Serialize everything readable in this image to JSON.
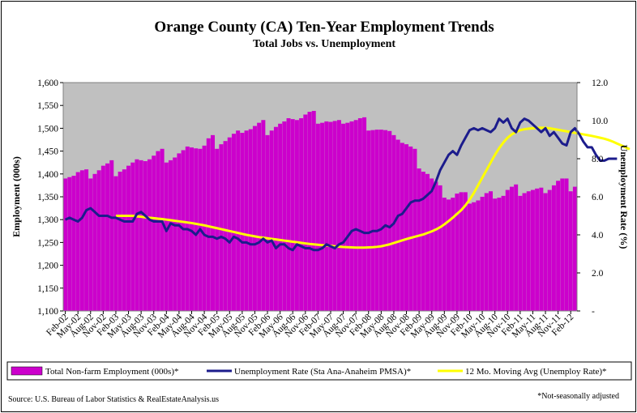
{
  "chart_data": {
    "type": "bar+line",
    "title": "Orange County (CA) Ten-Year Employment Trends",
    "subtitle": "Total Jobs vs. Unemployment",
    "ylabel_left": "Employment (000s)",
    "ylabel_right": "Unemployment Rate (%)",
    "ylim_left": [
      1100,
      1600
    ],
    "yticks_left": [
      "1,100",
      "1,150",
      "1,200",
      "1,250",
      "1,300",
      "1,350",
      "1,400",
      "1,450",
      "1,500",
      "1,550",
      "1,600"
    ],
    "ylim_right": [
      0,
      12
    ],
    "yticks_right": [
      "-",
      "2.0",
      "4.0",
      "6.0",
      "8.0",
      "10.0",
      "12.0"
    ],
    "x_tick_labels": [
      "Feb-02",
      "May-02",
      "Aug-02",
      "Nov-02",
      "Feb-03",
      "May-03",
      "Aug-03",
      "Nov-03",
      "Feb-04",
      "May-04",
      "Aug-04",
      "Nov-04",
      "Feb-05",
      "May-05",
      "Aug-05",
      "Nov-05",
      "Feb-06",
      "May-06",
      "Aug-06",
      "Nov-06",
      "Feb-07",
      "May-07",
      "Aug-07",
      "Nov-07",
      "Feb-08",
      "May-08",
      "Aug-08",
      "Nov-08",
      "Feb-09",
      "May-09",
      "Aug-09",
      "Nov-09",
      "Feb-10",
      "May-10",
      "Aug-10",
      "Nov-10",
      "Feb-11",
      "May-11",
      "Aug-11",
      "Nov-11",
      "Feb-12"
    ],
    "plot_background": "#c0c0c0",
    "grid": false,
    "series": [
      {
        "name": "Total Non-farm Employment (000s)*",
        "kind": "bar",
        "axis": "left",
        "color": "#cc00cc",
        "values": [
          1390,
          1393,
          1396,
          1404,
          1408,
          1410,
          1390,
          1400,
          1408,
          1418,
          1423,
          1430,
          1395,
          1405,
          1410,
          1418,
          1425,
          1432,
          1430,
          1428,
          1432,
          1440,
          1450,
          1455,
          1425,
          1430,
          1436,
          1445,
          1452,
          1460,
          1458,
          1456,
          1455,
          1462,
          1478,
          1485,
          1455,
          1465,
          1472,
          1480,
          1488,
          1495,
          1490,
          1495,
          1498,
          1505,
          1512,
          1518,
          1485,
          1495,
          1503,
          1510,
          1515,
          1522,
          1520,
          1518,
          1522,
          1530,
          1536,
          1538,
          1510,
          1512,
          1515,
          1514,
          1516,
          1518,
          1510,
          1512,
          1515,
          1518,
          1522,
          1524,
          1495,
          1496,
          1497,
          1497,
          1496,
          1494,
          1485,
          1475,
          1468,
          1465,
          1460,
          1455,
          1412,
          1405,
          1400,
          1390,
          1383,
          1375,
          1348,
          1344,
          1348,
          1357,
          1360,
          1360,
          1335,
          1338,
          1342,
          1350,
          1358,
          1362,
          1346,
          1348,
          1352,
          1365,
          1372,
          1377,
          1352,
          1358,
          1362,
          1365,
          1368,
          1370,
          1358,
          1365,
          1375,
          1385,
          1390,
          1390,
          1362,
          1372
        ]
      },
      {
        "name": "Unemployment Rate (Sta Ana-Anaheim PMSA)*",
        "kind": "line",
        "axis": "right",
        "color": "#1c1c8c",
        "values": [
          4.8,
          4.9,
          4.8,
          4.7,
          4.9,
          5.3,
          5.4,
          5.2,
          5.0,
          5.0,
          5.0,
          4.9,
          4.9,
          4.8,
          4.7,
          4.7,
          4.7,
          5.1,
          5.2,
          5.0,
          4.8,
          4.7,
          4.7,
          4.7,
          4.2,
          4.6,
          4.5,
          4.5,
          4.3,
          4.3,
          4.2,
          4.0,
          4.3,
          4.0,
          3.9,
          3.9,
          3.8,
          3.9,
          3.8,
          3.6,
          3.9,
          3.8,
          3.6,
          3.6,
          3.5,
          3.5,
          3.6,
          3.8,
          3.6,
          3.7,
          3.3,
          3.5,
          3.5,
          3.3,
          3.2,
          3.5,
          3.4,
          3.3,
          3.3,
          3.2,
          3.2,
          3.3,
          3.5,
          3.4,
          3.3,
          3.5,
          3.6,
          3.9,
          4.2,
          4.3,
          4.2,
          4.1,
          4.1,
          4.2,
          4.2,
          4.3,
          4.5,
          4.4,
          4.6,
          5.0,
          5.1,
          5.4,
          5.7,
          5.8,
          5.8,
          5.9,
          6.1,
          6.3,
          6.8,
          7.4,
          7.8,
          8.2,
          8.4,
          8.2,
          8.7,
          9.1,
          9.5,
          9.6,
          9.5,
          9.6,
          9.5,
          9.4,
          9.6,
          10.1,
          9.9,
          10.1,
          9.6,
          9.4,
          9.9,
          10.1,
          10.0,
          9.8,
          9.6,
          9.4,
          9.6,
          9.2,
          9.4,
          9.1,
          8.8,
          8.7,
          9.4,
          9.6,
          9.3,
          8.9,
          8.6,
          8.6,
          8.2,
          7.9,
          7.9,
          8.0,
          8.0,
          8.0
        ]
      },
      {
        "name": "12 Mo. Moving Avg (Unemploy Rate)*",
        "kind": "line",
        "axis": "right",
        "color": "#ffff00",
        "start_index": 12,
        "values": [
          5.0,
          5.0,
          5.0,
          5.0,
          5.0,
          4.97,
          4.95,
          4.92,
          4.9,
          4.88,
          4.85,
          4.83,
          4.8,
          4.77,
          4.74,
          4.71,
          4.68,
          4.65,
          4.62,
          4.58,
          4.54,
          4.5,
          4.45,
          4.4,
          4.35,
          4.3,
          4.25,
          4.2,
          4.15,
          4.1,
          4.05,
          4.0,
          3.96,
          3.92,
          3.88,
          3.85,
          3.82,
          3.79,
          3.76,
          3.73,
          3.7,
          3.67,
          3.64,
          3.61,
          3.58,
          3.55,
          3.52,
          3.5,
          3.48,
          3.46,
          3.44,
          3.42,
          3.4,
          3.38,
          3.36,
          3.35,
          3.34,
          3.33,
          3.33,
          3.33,
          3.34,
          3.35,
          3.37,
          3.4,
          3.45,
          3.5,
          3.57,
          3.64,
          3.71,
          3.78,
          3.84,
          3.9,
          3.96,
          4.02,
          4.1,
          4.18,
          4.28,
          4.4,
          4.55,
          4.72,
          4.9,
          5.1,
          5.3,
          5.55,
          5.85,
          6.2,
          6.6,
          7.0,
          7.4,
          7.8,
          8.2,
          8.55,
          8.85,
          9.1,
          9.28,
          9.4,
          9.5,
          9.55,
          9.58,
          9.6,
          9.62,
          9.63,
          9.62,
          9.6,
          9.56,
          9.52,
          9.48,
          9.44,
          9.4,
          9.36,
          9.32,
          9.28,
          9.24,
          9.2,
          9.15,
          9.1,
          9.05,
          8.98,
          8.9,
          8.8,
          8.7,
          8.6,
          8.5
        ]
      }
    ],
    "legend_position": "bottom",
    "source": "Source: U.S. Bureau of Labor Statistics & RealEstateAnalysis.us",
    "footnote": "*Not-seasonally adjusted"
  }
}
